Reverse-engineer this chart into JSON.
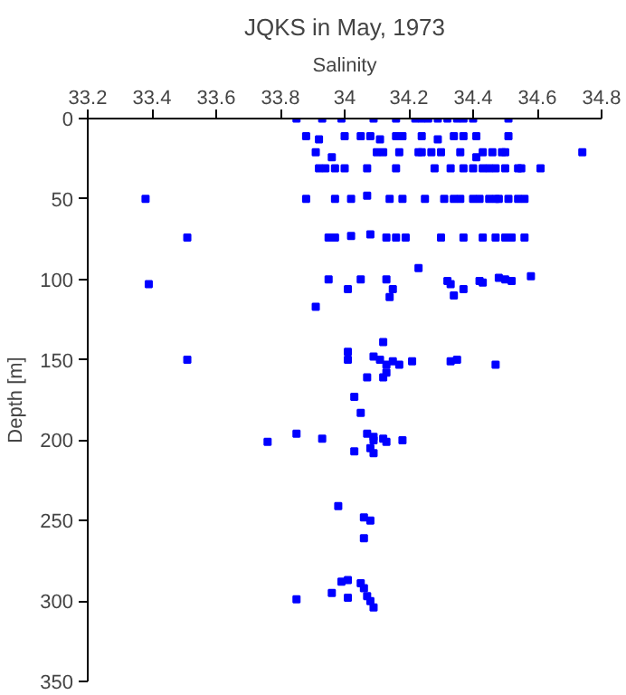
{
  "chart_data": {
    "type": "scatter",
    "title": "JQKS in May, 1973",
    "xlabel": "Salinity",
    "ylabel": "Depth [m]",
    "marker": "square",
    "color": "#0000ff",
    "xlim": [
      33.2,
      34.8
    ],
    "xticks": [
      33.2,
      33.4,
      33.6,
      33.8,
      34,
      34.2,
      34.4,
      34.6,
      34.8
    ],
    "ylim": [
      350,
      0
    ],
    "yticks": [
      0,
      50,
      100,
      150,
      200,
      250,
      300,
      350
    ],
    "x": [
      33.85,
      33.93,
      33.99,
      34.09,
      34.16,
      34.22,
      34.24,
      34.26,
      34.29,
      34.32,
      34.35,
      34.37,
      34.4,
      34.51,
      33.88,
      33.92,
      34.0,
      34.05,
      34.08,
      34.11,
      34.16,
      34.18,
      34.24,
      34.29,
      34.34,
      34.37,
      34.41,
      34.51,
      33.91,
      33.96,
      34.1,
      34.12,
      34.17,
      34.23,
      34.24,
      34.27,
      34.3,
      34.36,
      34.41,
      34.43,
      34.46,
      34.49,
      34.5,
      34.74,
      33.92,
      33.94,
      33.97,
      34.0,
      34.07,
      34.16,
      34.28,
      34.33,
      34.37,
      34.4,
      34.43,
      34.45,
      34.47,
      34.5,
      34.54,
      34.55,
      34.61,
      33.38,
      33.88,
      33.97,
      34.02,
      34.07,
      34.14,
      34.18,
      34.25,
      34.31,
      34.34,
      34.36,
      34.4,
      34.42,
      34.45,
      34.47,
      34.48,
      34.51,
      34.54,
      34.56,
      33.51,
      33.95,
      33.97,
      34.02,
      34.08,
      34.13,
      34.16,
      34.19,
      34.3,
      34.37,
      34.43,
      34.47,
      34.5,
      34.52,
      34.56,
      34.23,
      33.95,
      34.05,
      34.13,
      34.32,
      34.33,
      34.37,
      34.34,
      34.42,
      34.43,
      34.48,
      34.5,
      34.52,
      34.58,
      34.01,
      34.15,
      34.14,
      33.91,
      33.39,
      33.51,
      34.01,
      34.01,
      34.12,
      34.09,
      34.11,
      34.13,
      34.15,
      34.17,
      34.21,
      34.33,
      34.35,
      34.47,
      34.13,
      34.12,
      34.07,
      34.03,
      34.05,
      33.76,
      33.85,
      33.93,
      34.03,
      34.07,
      34.09,
      34.09,
      34.08,
      34.09,
      34.12,
      34.13,
      34.18,
      33.98,
      34.06,
      34.08,
      34.06,
      34.01,
      33.99,
      34.05,
      34.06,
      33.96,
      34.01,
      33.85,
      34.07,
      34.08,
      34.09
    ],
    "values": [
      0,
      0,
      0,
      0,
      0,
      0,
      0,
      0,
      0,
      0,
      0,
      0,
      0,
      0,
      11,
      13,
      11,
      11,
      11,
      13,
      11,
      11,
      11,
      13,
      11,
      11,
      11,
      11,
      21,
      24,
      21,
      21,
      21,
      21,
      21,
      21,
      21,
      21,
      24,
      21,
      21,
      21,
      21,
      21,
      31,
      31,
      31,
      31,
      31,
      31,
      31,
      31,
      31,
      31,
      31,
      31,
      31,
      31,
      31,
      31,
      31,
      50,
      50,
      50,
      50,
      48,
      50,
      50,
      50,
      50,
      50,
      50,
      50,
      50,
      50,
      50,
      50,
      50,
      50,
      50,
      74,
      74,
      74,
      73,
      72,
      74,
      74,
      74,
      74,
      74,
      74,
      74,
      74,
      74,
      74,
      93,
      100,
      100,
      100,
      101,
      103,
      106,
      110,
      101,
      102,
      99,
      100,
      101,
      98,
      106,
      106,
      111,
      117,
      103,
      150,
      145,
      150,
      139,
      148,
      150,
      153,
      151,
      153,
      151,
      151,
      150,
      153,
      158,
      161,
      161,
      173,
      183,
      201,
      196,
      199,
      207,
      196,
      198,
      200,
      205,
      208,
      199,
      201,
      200,
      241,
      248,
      250,
      261,
      287,
      288,
      289,
      292,
      295,
      298,
      299,
      297,
      300,
      304
    ]
  }
}
